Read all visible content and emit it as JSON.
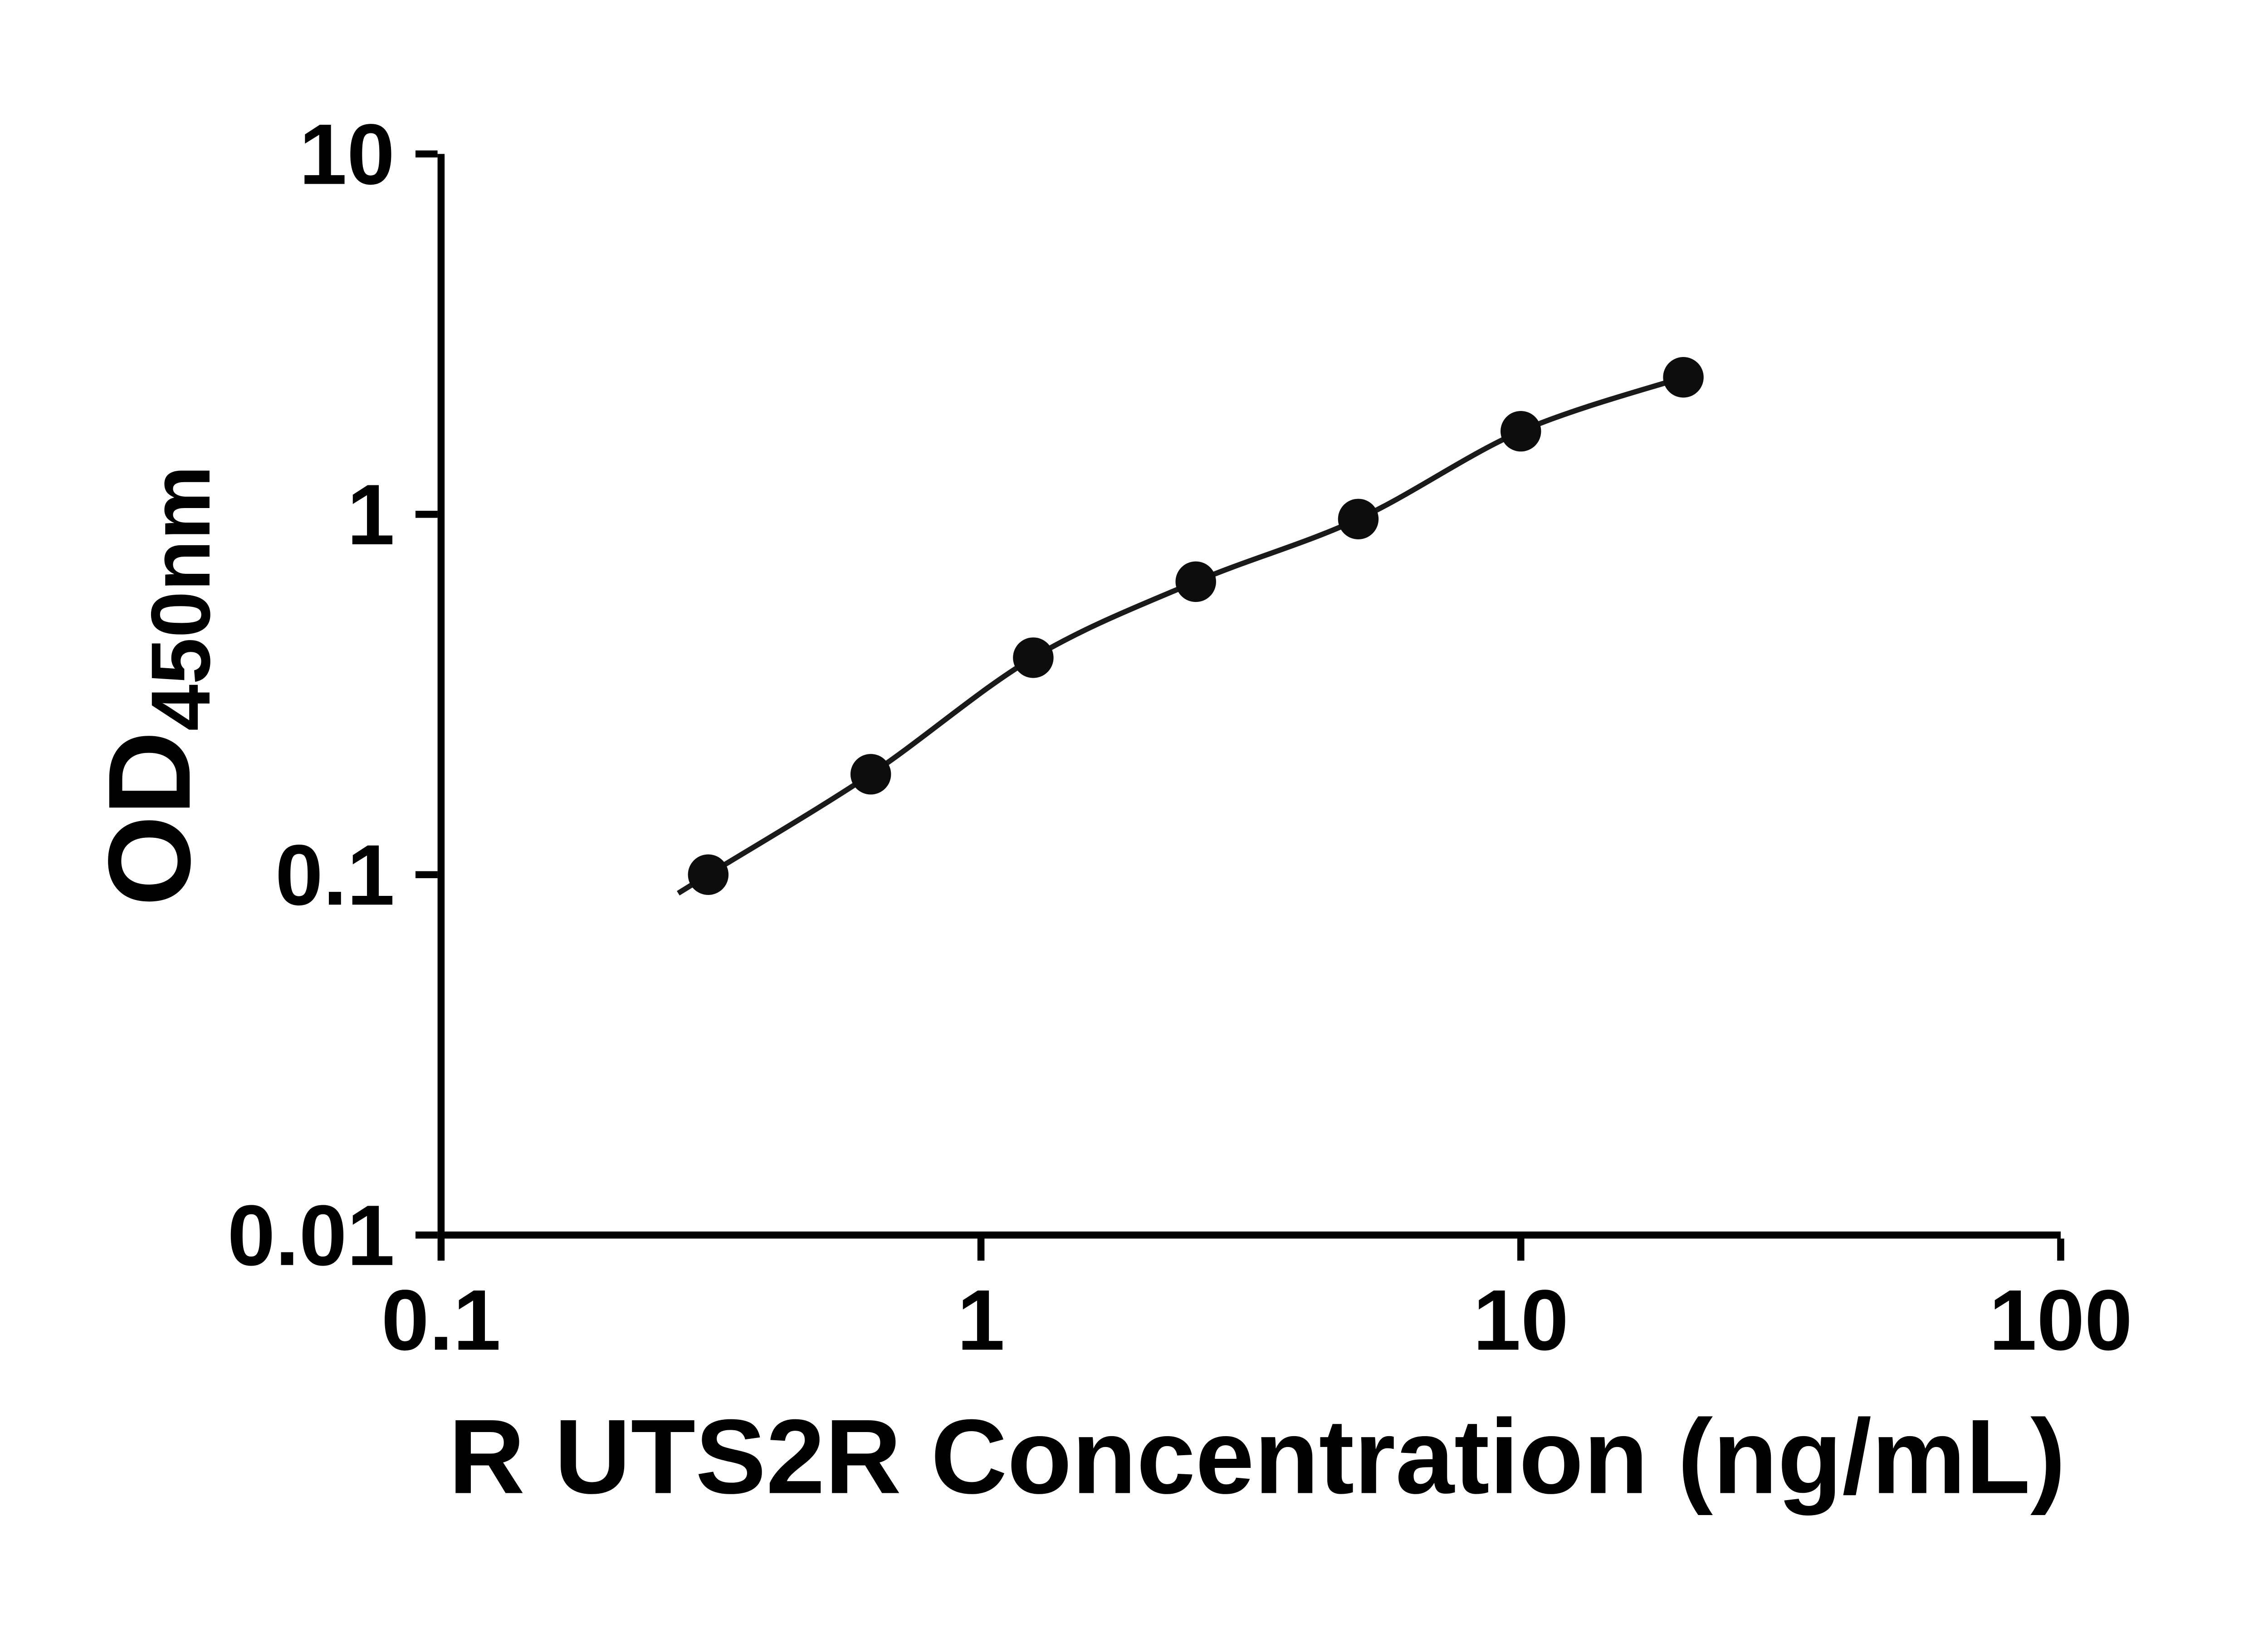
{
  "chart_data": {
    "type": "scatter",
    "subtype": "elisa-standard-curve",
    "title": "",
    "xlabel": "R UTS2R Concentration (ng/mL)",
    "ylabel_main": "OD",
    "ylabel_sub": "450nm",
    "x_scale": "log10",
    "y_scale": "log10",
    "xlim": [
      0.1,
      100
    ],
    "ylim": [
      0.01,
      10
    ],
    "x_ticks": [
      {
        "value": 0.1,
        "label": "0.1"
      },
      {
        "value": 1,
        "label": "1"
      },
      {
        "value": 10,
        "label": "10"
      },
      {
        "value": 100,
        "label": "100"
      }
    ],
    "y_ticks": [
      {
        "value": 0.01,
        "label": "0.01"
      },
      {
        "value": 0.1,
        "label": "0.1"
      },
      {
        "value": 1,
        "label": "1"
      },
      {
        "value": 10,
        "label": "10"
      }
    ],
    "series": [
      {
        "name": "standard-curve",
        "marker": "filled-circle",
        "x": [
          0.3125,
          0.625,
          1.25,
          2.5,
          5,
          10,
          20
        ],
        "y": [
          0.1,
          0.19,
          0.4,
          0.65,
          0.97,
          1.7,
          2.4
        ],
        "fit": "smooth curve through points"
      }
    ],
    "grid": false,
    "legend": "none",
    "colors": {
      "axis": "#000000",
      "curve": "#1a1a1a",
      "marker": "#0d0d0d",
      "text": "#000000",
      "background": "#ffffff"
    }
  }
}
